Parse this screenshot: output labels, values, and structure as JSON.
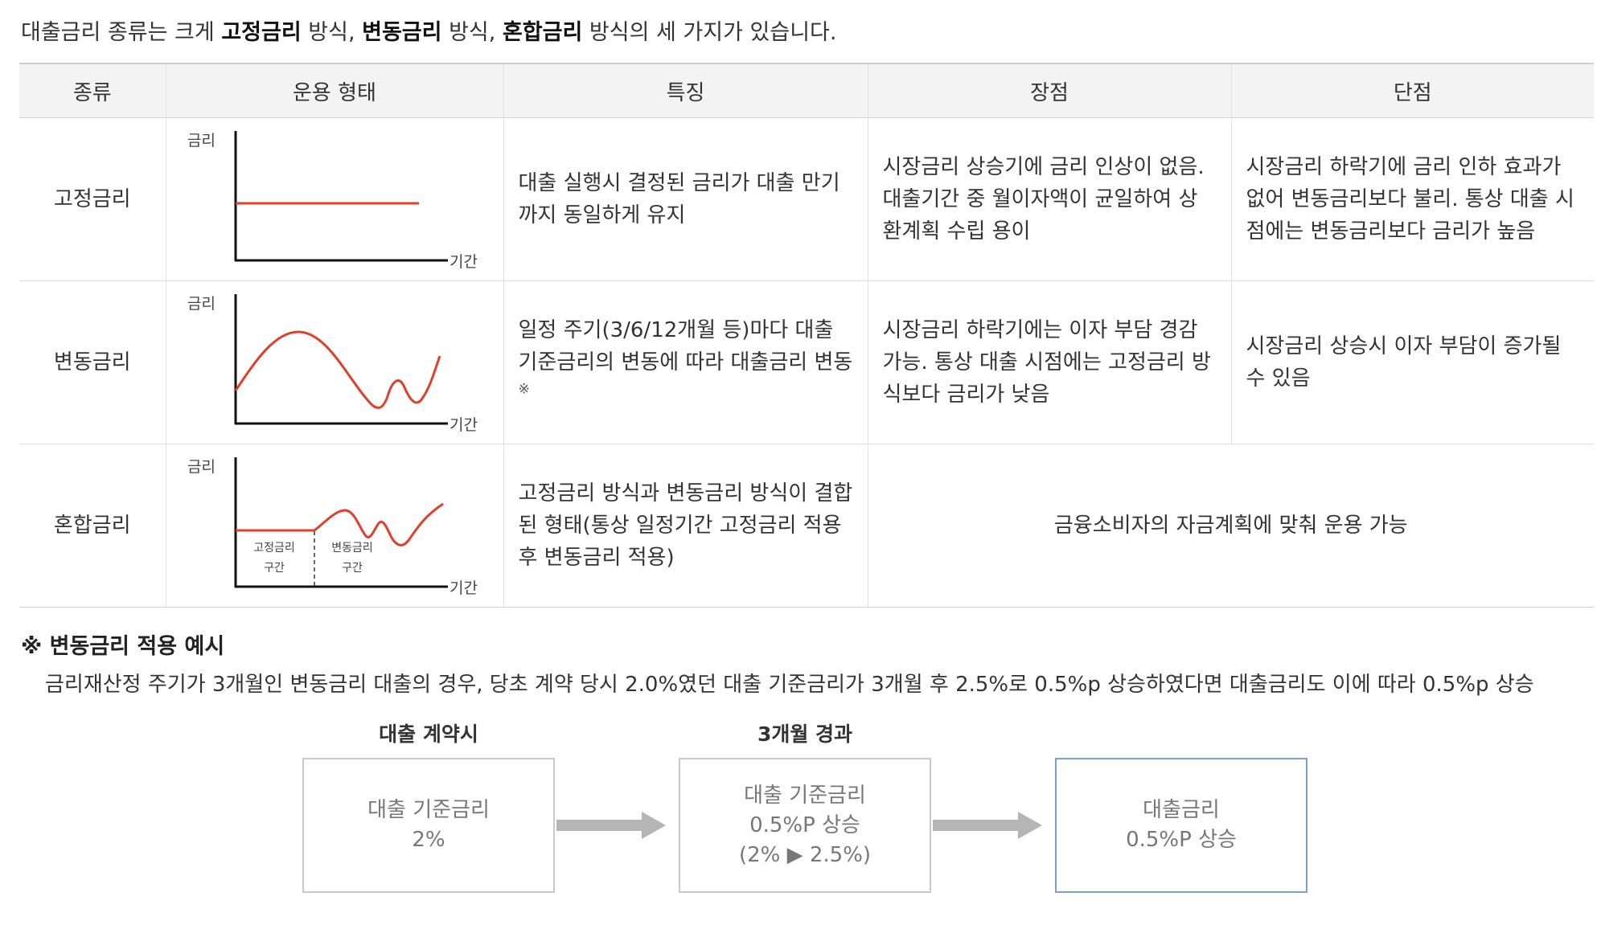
{
  "intro": {
    "pre": "대출금리 종류는 크게 ",
    "b1": "고정금리",
    "m1": " 방식, ",
    "b2": "변동금리",
    "m2": " 방식, ",
    "b3": "혼합금리",
    "post": " 방식의 세 가지가 있습니다."
  },
  "table": {
    "headers": [
      "종류",
      "운용 형태",
      "특징",
      "장점",
      "단점"
    ],
    "graph_labels": {
      "y": "금리",
      "x": "기간",
      "mixed_fixed_1": "고정금리",
      "mixed_fixed_2": "구간",
      "mixed_var_1": "변동금리",
      "mixed_var_2": "구간"
    },
    "rows": [
      {
        "kind": "고정금리",
        "feature": "대출 실행시 결정된 금리가 대출 만기까지 동일하게 유지",
        "pros": "시장금리 상승기에 금리 인상이 없음. 대출기간 중 월이자액이 균일하여 상환계획 수립 용이",
        "cons": "시장금리 하락기에 금리 인하 효과가 없어 변동금리보다 불리. 통상 대출 시점에는 변동금리보다 금리가 높음"
      },
      {
        "kind": "변동금리",
        "feature": "일정 주기(3/6/12개월 등)마다 대출 기준금리의 변동에 따라 대출금리 변동",
        "feature_mark": "※",
        "pros": "시장금리 하락기에는 이자 부담 경감 가능. 통상 대출 시점에는 고정금리 방식보다 금리가 낮음",
        "cons": "시장금리 상승시 이자 부담이 증가될 수 있음"
      },
      {
        "kind": "혼합금리",
        "feature": "고정금리 방식과 변동금리 방식이 결합된 형태(통상 일정기간 고정금리 적용 후 변동금리 적용)",
        "merged": "금융소비자의 자금계획에 맞춰 운용 가능"
      }
    ]
  },
  "note": {
    "title": "※ 변동금리 적용 예시",
    "body": "금리재산정 주기가 3개월인 변동금리 대출의 경우, 당초 계약 당시 2.0%였던 대출 기준금리가 3개월 후 2.5%로 0.5%p 상승하였다면 대출금리도 이에 따라 0.5%p 상승"
  },
  "flow": {
    "label1": "대출 계약시",
    "label2": "3개월 경과",
    "box1": [
      "대출 기준금리",
      "2%"
    ],
    "box2": [
      "대출 기준금리",
      "0.5%P 상승",
      "(2% ▶ 2.5%)"
    ],
    "box3": [
      "대출금리",
      "0.5%P 상승"
    ]
  },
  "colors": {
    "curve": "#e0402a",
    "axis": "#111111",
    "header_bg": "#f3f3f3",
    "arrow": "#b5b5b5",
    "box_border": "#c8c8c8",
    "box_border_result": "#7d9fd0"
  }
}
